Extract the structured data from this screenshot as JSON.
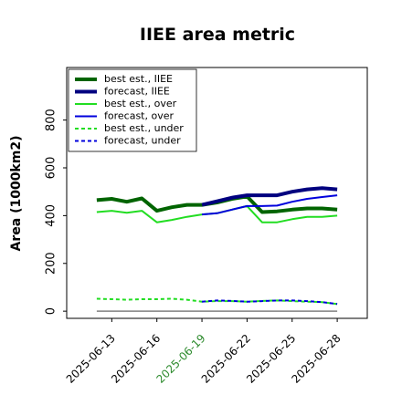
{
  "chart_data": {
    "type": "line",
    "title": "IIEE area metric",
    "xlabel": "",
    "ylabel": "Area (1000km2)",
    "xlim": [
      "2025-06-10",
      "2025-06-30"
    ],
    "ylim": [
      -30,
      1020
    ],
    "yticks": [
      0,
      200,
      400,
      600,
      800
    ],
    "xticks": [
      "2025-06-13",
      "2025-06-16",
      "2025-06-19",
      "2025-06-22",
      "2025-06-25",
      "2025-06-28"
    ],
    "xtick_colors": [
      "#000000",
      "#000000",
      "#2e8b2e",
      "#000000",
      "#000000",
      "#000000"
    ],
    "grid": false,
    "legend_position": "top-left",
    "baseline": {
      "y": 0,
      "color": "#808080"
    },
    "series": [
      {
        "name": "best est., IIEE",
        "color": "#006400",
        "dash": "solid",
        "width": 4,
        "x": [
          "2025-06-12",
          "2025-06-13",
          "2025-06-14",
          "2025-06-15",
          "2025-06-16",
          "2025-06-17",
          "2025-06-18",
          "2025-06-19",
          "2025-06-20",
          "2025-06-21",
          "2025-06-22",
          "2025-06-23",
          "2025-06-24",
          "2025-06-25",
          "2025-06-26",
          "2025-06-27",
          "2025-06-28"
        ],
        "values": [
          465,
          470,
          458,
          472,
          420,
          435,
          445,
          445,
          455,
          470,
          480,
          415,
          418,
          425,
          430,
          430,
          425
        ]
      },
      {
        "name": "forecast, IIEE",
        "color": "#00007f",
        "dash": "solid",
        "width": 4,
        "x": [
          "2025-06-19",
          "2025-06-20",
          "2025-06-21",
          "2025-06-22",
          "2025-06-23",
          "2025-06-24",
          "2025-06-25",
          "2025-06-26",
          "2025-06-27",
          "2025-06-28"
        ],
        "values": [
          445,
          460,
          475,
          485,
          485,
          485,
          500,
          510,
          515,
          510
        ]
      },
      {
        "name": "best est., over",
        "color": "#22dd22",
        "dash": "solid",
        "width": 2,
        "x": [
          "2025-06-12",
          "2025-06-13",
          "2025-06-14",
          "2025-06-15",
          "2025-06-16",
          "2025-06-17",
          "2025-06-18",
          "2025-06-19",
          "2025-06-20",
          "2025-06-21",
          "2025-06-22",
          "2025-06-23",
          "2025-06-24",
          "2025-06-25",
          "2025-06-26",
          "2025-06-27",
          "2025-06-28"
        ],
        "values": [
          415,
          420,
          412,
          420,
          372,
          382,
          395,
          405,
          410,
          425,
          440,
          372,
          372,
          385,
          395,
          395,
          400
        ]
      },
      {
        "name": "forecast, over",
        "color": "#0000dd",
        "dash": "solid",
        "width": 2,
        "x": [
          "2025-06-19",
          "2025-06-20",
          "2025-06-21",
          "2025-06-22",
          "2025-06-23",
          "2025-06-24",
          "2025-06-25",
          "2025-06-26",
          "2025-06-27",
          "2025-06-28"
        ],
        "values": [
          405,
          410,
          425,
          440,
          440,
          442,
          458,
          470,
          478,
          485
        ]
      },
      {
        "name": "best est., under",
        "color": "#22dd22",
        "dash": "dashed",
        "width": 2,
        "x": [
          "2025-06-12",
          "2025-06-13",
          "2025-06-14",
          "2025-06-15",
          "2025-06-16",
          "2025-06-17",
          "2025-06-18",
          "2025-06-19",
          "2025-06-20",
          "2025-06-21",
          "2025-06-22",
          "2025-06-23",
          "2025-06-24",
          "2025-06-25",
          "2025-06-26",
          "2025-06-27",
          "2025-06-28"
        ],
        "values": [
          52,
          50,
          48,
          50,
          50,
          52,
          48,
          40,
          42,
          42,
          40,
          43,
          45,
          42,
          40,
          38,
          30
        ]
      },
      {
        "name": "forecast, under",
        "color": "#0000dd",
        "dash": "dashed",
        "width": 2,
        "x": [
          "2025-06-19",
          "2025-06-20",
          "2025-06-21",
          "2025-06-22",
          "2025-06-23",
          "2025-06-24",
          "2025-06-25",
          "2025-06-26",
          "2025-06-27",
          "2025-06-28"
        ],
        "values": [
          40,
          45,
          43,
          40,
          42,
          45,
          45,
          42,
          38,
          30
        ]
      }
    ]
  }
}
